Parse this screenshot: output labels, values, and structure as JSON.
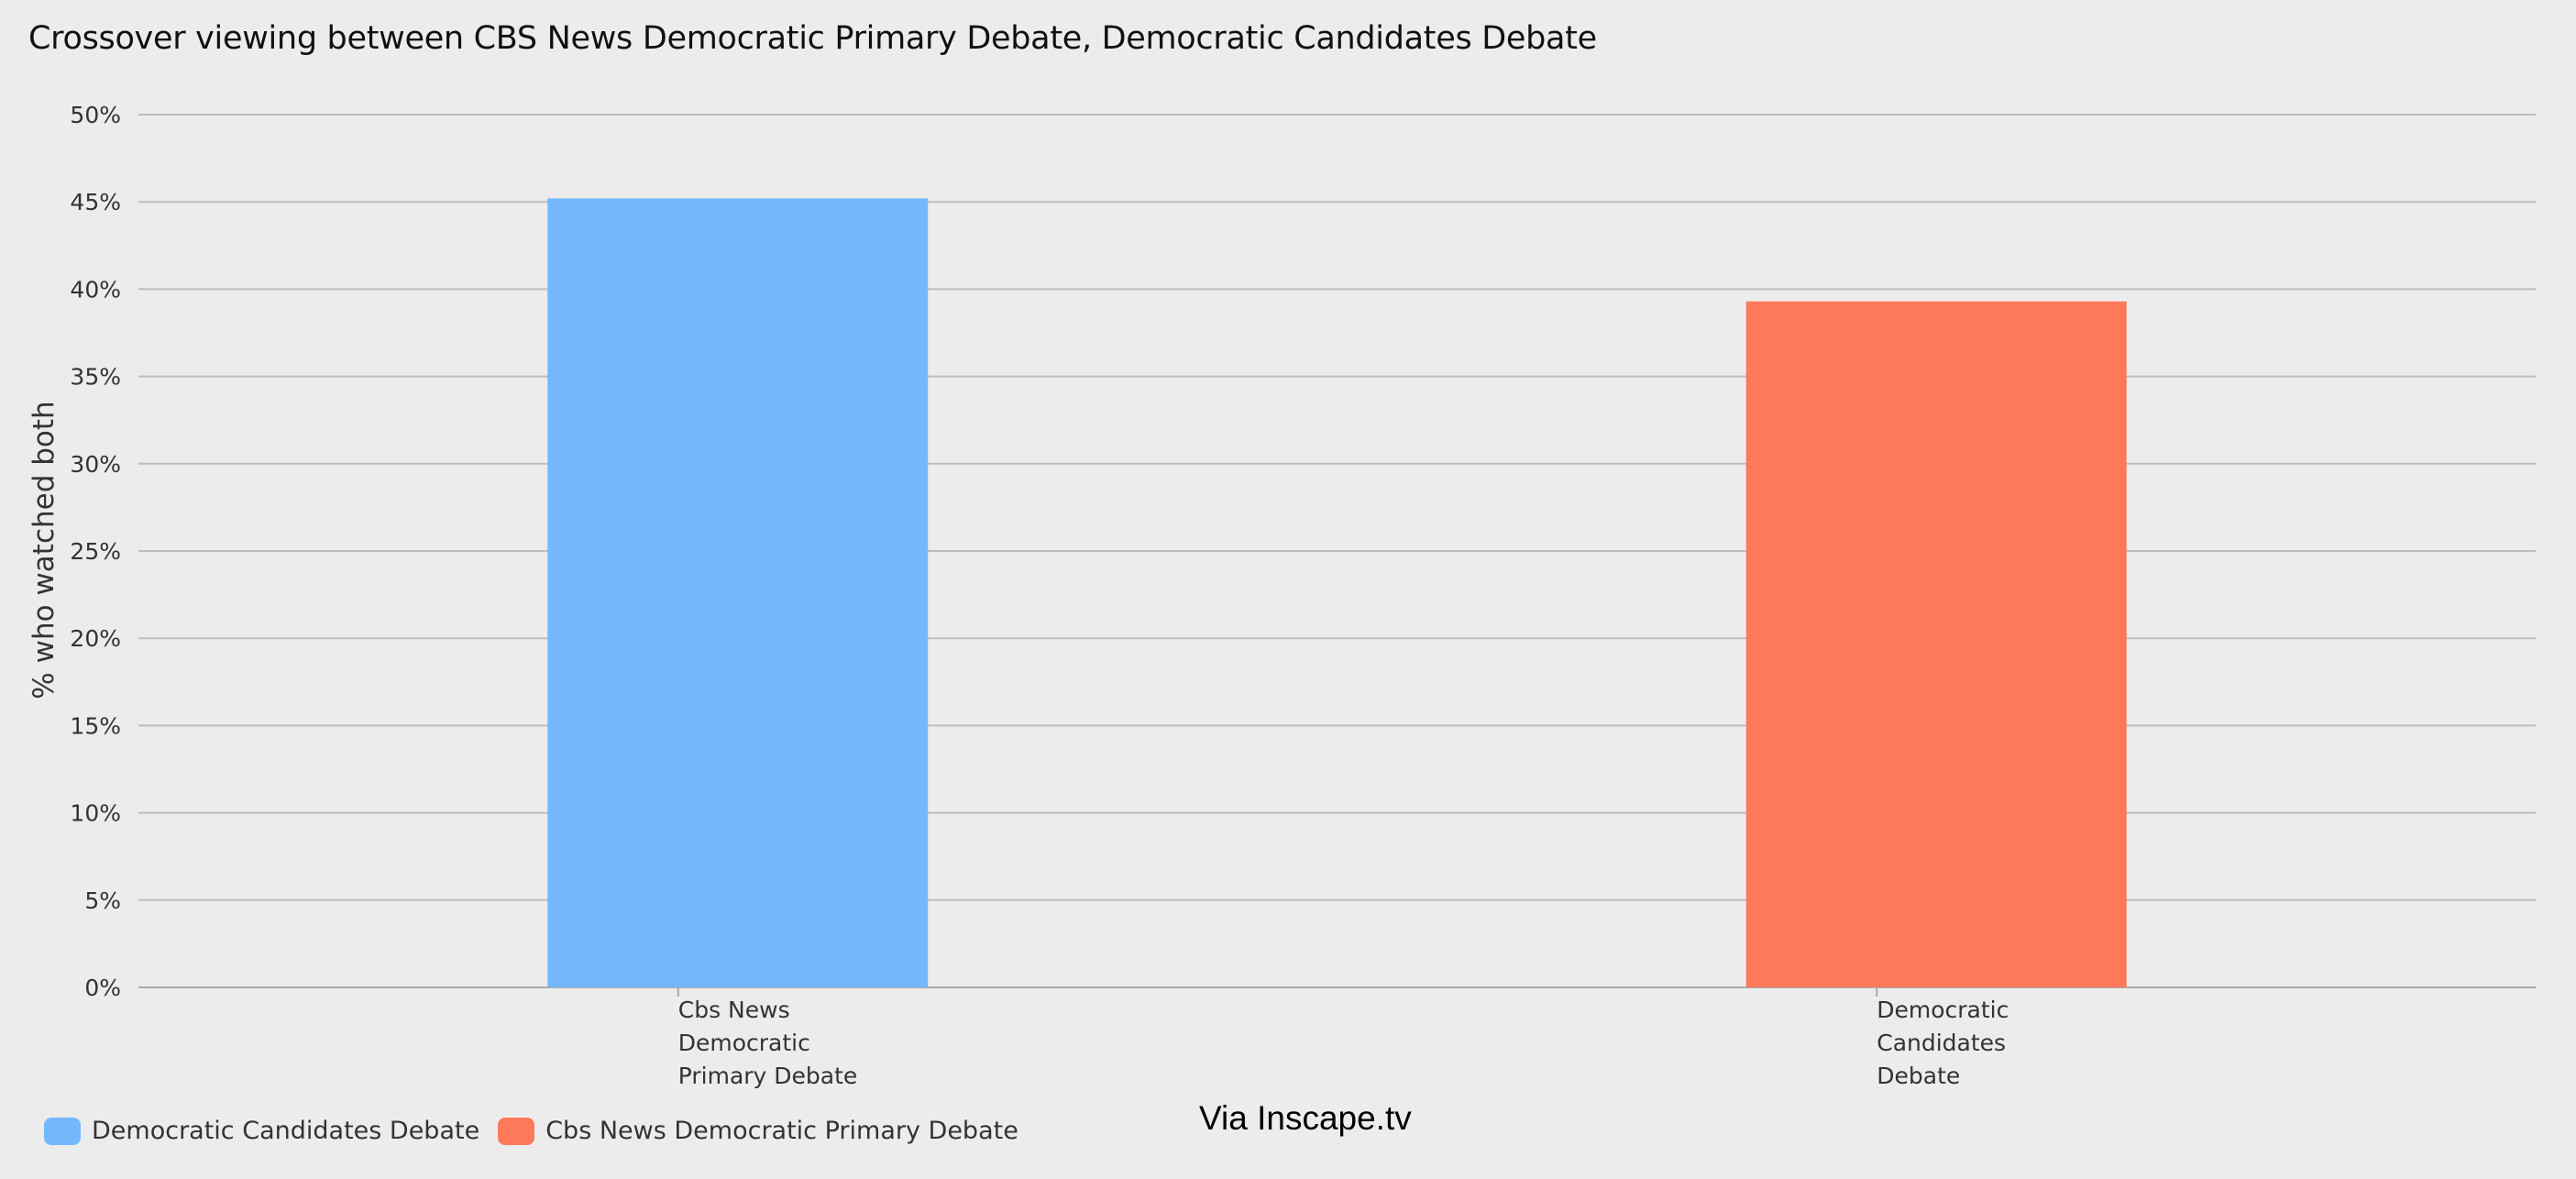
{
  "chart_data": {
    "type": "bar",
    "title": "Crossover viewing between CBS News Democratic Primary Debate, Democratic Candidates Debate",
    "ylabel": "% who watched both",
    "xlabel": "",
    "ylim": [
      0,
      50
    ],
    "yticks": [
      "0%",
      "5%",
      "10%",
      "15%",
      "20%",
      "25%",
      "30%",
      "35%",
      "40%",
      "45%",
      "50%"
    ],
    "grid": true,
    "categories": [
      [
        "Cbs News",
        "Democratic",
        "Primary Debate"
      ],
      [
        "Democratic",
        "Candidates",
        "Debate"
      ]
    ],
    "values": [
      45.2,
      39.3
    ],
    "colors": [
      "#74b8fb",
      "#fe785a"
    ],
    "legend_position": "bottom-left",
    "legend": [
      {
        "label": "Democratic Candidates Debate",
        "color": "#74b8fb"
      },
      {
        "label": "Cbs News Democratic Primary Debate",
        "color": "#fe785a"
      }
    ]
  },
  "source": "Via Inscape.tv"
}
